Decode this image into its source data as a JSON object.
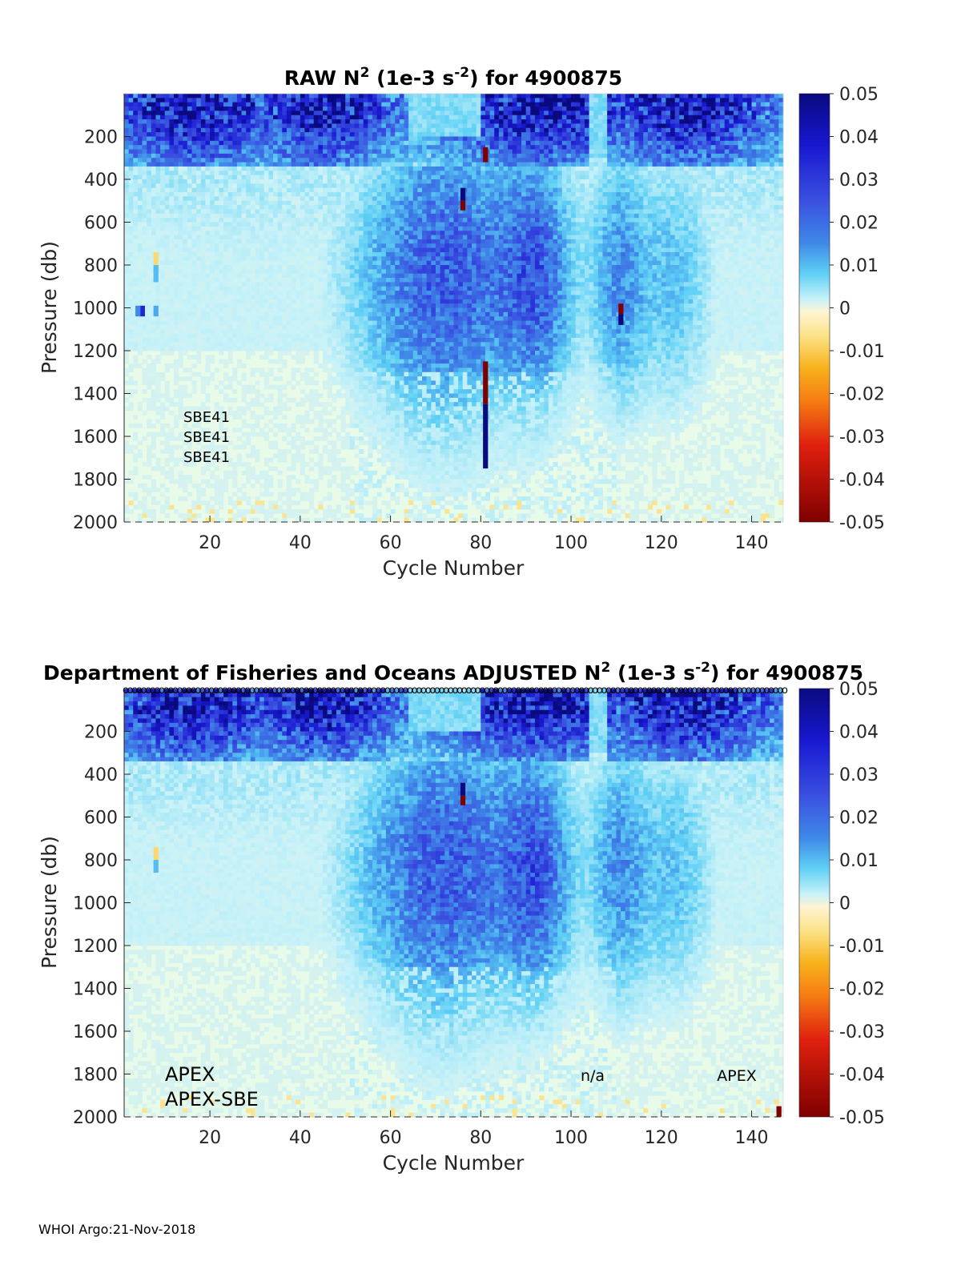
{
  "footer": "WHOI Argo:21-Nov-2018",
  "colors": {
    "background": "#e8fae8",
    "deep_blue": "#0a0a8c",
    "mid_blue": "#3c5adc",
    "light_blue": "#96dcf5",
    "cream": "#fff5d2",
    "dark_red": "#800000"
  },
  "colorbar": {
    "ticks": [
      "0.05",
      "0.04",
      "0.03",
      "0.02",
      "0.01",
      "0",
      "-0.01",
      "-0.02",
      "-0.03",
      "-0.04",
      "-0.05"
    ],
    "range": [
      -0.05,
      0.05
    ]
  },
  "chart_data": [
    {
      "type": "heatmap",
      "title_prefix": "RAW N",
      "title_sup1": "2",
      "title_mid": " (1e-3 s",
      "title_sup2": "-2",
      "title_suffix": ") for 4900875",
      "xlabel": "Cycle Number",
      "ylabel": "Pressure (db)",
      "xlim": [
        1,
        147
      ],
      "ylim": [
        0,
        2000
      ],
      "y_reversed": true,
      "xticks": [
        "20",
        "40",
        "60",
        "80",
        "100",
        "120",
        "140"
      ],
      "yticks": [
        "200",
        "400",
        "600",
        "800",
        "1000",
        "1200",
        "1400",
        "1600",
        "1800",
        "2000"
      ],
      "annotations": [
        "SBE41",
        "SBE41",
        "SBE41"
      ],
      "anomalies": [
        {
          "cycle": 8,
          "p0": 740,
          "p1": 800,
          "value": -0.01
        },
        {
          "cycle": 8,
          "p0": 800,
          "p1": 880,
          "value": 0.01
        },
        {
          "cycle": 5,
          "p0": 990,
          "p1": 1040,
          "value": 0.035
        },
        {
          "cycle": 4,
          "p0": 990,
          "p1": 1040,
          "value": 0.015
        },
        {
          "cycle": 8,
          "p0": 990,
          "p1": 1040,
          "value": 0.012
        },
        {
          "cycle": 76,
          "p0": 440,
          "p1": 500,
          "value": 0.05
        },
        {
          "cycle": 76,
          "p0": 500,
          "p1": 545,
          "value": -0.05
        },
        {
          "cycle": 81,
          "p0": 1250,
          "p1": 1450,
          "value": -0.05
        },
        {
          "cycle": 81,
          "p0": 1450,
          "p1": 1750,
          "value": 0.05
        },
        {
          "cycle": 111,
          "p0": 980,
          "p1": 1030,
          "value": -0.05
        },
        {
          "cycle": 111,
          "p0": 1030,
          "p1": 1080,
          "value": 0.05
        },
        {
          "cycle": 81,
          "p0": 250,
          "p1": 320,
          "value": -0.05
        }
      ]
    },
    {
      "type": "heatmap",
      "title_prefix": "Department of Fisheries and Oceans  ADJUSTED N",
      "title_sup1": "2",
      "title_mid": " (1e-3 s",
      "title_sup2": "-2",
      "title_suffix": ") for 4900875",
      "xlabel": "Cycle Number",
      "ylabel": "Pressure (db)",
      "xlim": [
        1,
        147
      ],
      "ylim": [
        0,
        2000
      ],
      "y_reversed": true,
      "xticks": [
        "20",
        "40",
        "60",
        "80",
        "100",
        "120",
        "140"
      ],
      "yticks": [
        "200",
        "400",
        "600",
        "800",
        "1000",
        "1200",
        "1400",
        "1600",
        "1800",
        "2000"
      ],
      "annotations": [
        "APEX",
        "APEX-SBE",
        "n/a",
        "APEX"
      ],
      "top_marker": "o",
      "anomalies": [
        {
          "cycle": 8,
          "p0": 740,
          "p1": 800,
          "value": -0.01
        },
        {
          "cycle": 8,
          "p0": 800,
          "p1": 860,
          "value": 0.01
        },
        {
          "cycle": 76,
          "p0": 440,
          "p1": 500,
          "value": 0.05
        },
        {
          "cycle": 76,
          "p0": 500,
          "p1": 545,
          "value": -0.05
        },
        {
          "cycle": 146,
          "p0": 1950,
          "p1": 2000,
          "value": -0.05
        }
      ]
    }
  ]
}
